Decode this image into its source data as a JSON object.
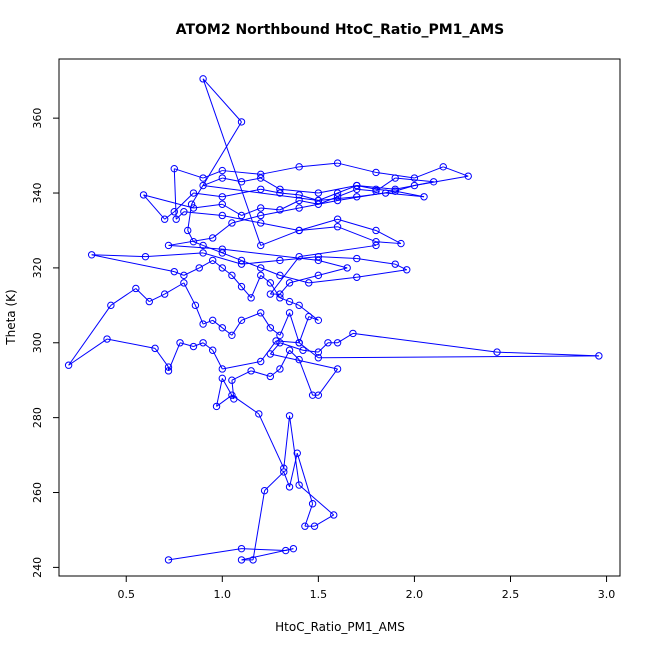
{
  "chart_data": {
    "type": "line",
    "title": "ATOM2 Northbound HtoC_Ratio_PM1_AMS",
    "xlabel": "HtoC_Ratio_PM1_AMS",
    "ylabel": "Theta (K)",
    "xlim": [
      0.15,
      3.07
    ],
    "ylim": [
      237.7,
      375.8
    ],
    "xticks": [
      0.5,
      1.0,
      1.5,
      2.0,
      2.5,
      3.0
    ],
    "xtick_labels": [
      "0.5",
      "1.0",
      "1.5",
      "2.0",
      "2.5",
      "3.0"
    ],
    "yticks": [
      240,
      260,
      280,
      300,
      320,
      340,
      360
    ],
    "ytick_labels": [
      "240",
      "260",
      "280",
      "300",
      "320",
      "340",
      "360"
    ],
    "markers": "open-circle",
    "grid": false,
    "colors": {
      "series": "#0000ff",
      "axes": "#000000",
      "background": "#ffffff"
    },
    "series": [
      {
        "x": [
          0.72,
          1.1,
          1.33,
          1.37,
          1.1,
          1.16,
          1.22,
          1.32,
          1.35,
          1.39,
          1.47,
          1.43,
          1.48,
          1.58,
          1.4,
          1.35,
          1.32,
          1.19,
          1.05,
          0.97,
          1.0,
          1.06,
          1.05,
          1.15,
          1.25,
          1.3,
          1.35,
          1.4,
          1.47,
          1.5,
          1.6,
          1.25,
          1.3,
          1.42,
          1.5,
          1.55,
          1.6,
          1.68,
          2.43,
          2.96,
          1.5,
          1.4,
          1.28,
          1.2,
          1.0,
          0.95,
          0.9,
          0.85,
          0.78,
          0.72,
          0.72,
          0.65,
          0.4,
          0.2,
          0.42,
          0.55,
          0.62,
          0.7,
          0.8,
          0.86,
          0.9,
          0.95,
          1.0,
          1.05,
          1.1,
          1.2,
          1.25,
          1.3,
          1.35,
          1.4,
          1.45,
          1.5,
          1.4,
          1.35,
          1.3,
          1.25,
          1.2,
          1.15,
          1.1,
          1.05,
          1.0,
          0.95,
          0.88,
          0.8,
          0.75,
          0.32,
          0.6,
          0.9,
          1.1,
          1.3,
          1.5,
          1.7,
          1.9,
          1.96,
          1.7,
          1.45,
          1.3,
          1.2,
          1.1,
          1.0,
          0.9,
          0.85,
          0.82,
          0.84,
          1.1,
          0.9,
          1.2,
          1.4,
          1.6,
          1.8,
          1.93,
          1.8,
          1.6,
          1.4,
          1.2,
          1.0,
          0.8,
          0.76,
          0.75,
          0.9,
          1.0,
          1.2,
          1.4,
          1.6,
          1.8,
          2.0,
          2.15,
          2.28,
          2.0,
          1.9,
          1.8,
          1.7,
          1.6,
          1.5,
          1.4,
          1.3,
          1.2,
          1.0,
          0.85,
          0.75,
          0.7,
          0.59,
          0.85,
          1.0,
          1.1,
          1.2,
          1.3,
          1.4,
          1.5,
          1.6,
          1.7,
          1.8,
          1.9,
          2.1,
          1.9,
          1.7,
          1.5,
          1.3,
          1.2,
          1.1,
          1.0,
          0.9,
          1.5,
          1.7,
          1.85,
          2.05,
          1.9,
          1.6,
          1.4,
          1.2,
          1.05,
          0.95,
          0.72,
          1.0,
          1.5,
          1.65,
          1.5,
          1.35,
          1.3,
          1.25,
          1.4,
          1.8
        ],
        "y": [
          242.0,
          245.0,
          244.5,
          245.0,
          242.0,
          242.0,
          260.5,
          265.5,
          261.5,
          270.5,
          257.0,
          251.0,
          251.0,
          254.0,
          262.0,
          280.5,
          266.5,
          281.0,
          286.0,
          283.0,
          290.5,
          285.0,
          290.0,
          292.5,
          291.0,
          293.0,
          298.0,
          295.5,
          286.0,
          286.0,
          293.0,
          297.0,
          300.0,
          298.0,
          297.5,
          300.0,
          300.0,
          302.5,
          297.5,
          296.5,
          296.0,
          300.0,
          300.5,
          295.0,
          293.0,
          298.0,
          300.0,
          299.0,
          300.0,
          292.5,
          293.5,
          298.5,
          301.0,
          294.0,
          310.0,
          314.5,
          311.0,
          313.0,
          316.0,
          310.0,
          305.0,
          306.0,
          304.0,
          302.0,
          306.0,
          308.0,
          304.0,
          302.0,
          308.0,
          300.0,
          307.0,
          306.0,
          310.0,
          311.0,
          312.0,
          316.0,
          318.0,
          312.0,
          315.0,
          318.0,
          320.0,
          322.0,
          320.0,
          318.0,
          319.0,
          323.5,
          323.0,
          324.0,
          321.0,
          322.0,
          323.0,
          322.5,
          321.0,
          319.5,
          317.5,
          316.0,
          318.0,
          320.0,
          322.0,
          324.0,
          326.0,
          327.0,
          330.0,
          337.0,
          359.0,
          370.5,
          326.0,
          330.0,
          333.0,
          330.0,
          326.5,
          327.0,
          331.0,
          330.0,
          332.0,
          334.0,
          335.0,
          333.0,
          346.5,
          344.0,
          346.0,
          345.0,
          347.0,
          348.0,
          345.5,
          344.0,
          347.0,
          344.5,
          342.0,
          340.5,
          341.0,
          342.0,
          340.0,
          338.0,
          339.5,
          340.0,
          341.0,
          339.0,
          340.0,
          335.0,
          333.0,
          339.5,
          336.0,
          337.0,
          334.0,
          336.0,
          335.5,
          338.0,
          337.0,
          339.0,
          341.0,
          340.5,
          344.0,
          343.0,
          341.0,
          342.0,
          340.0,
          341.0,
          344.0,
          343.0,
          344.0,
          342.0,
          338.0,
          339.0,
          340.0,
          339.0,
          340.5,
          338.0,
          336.0,
          334.0,
          332.0,
          328.0,
          326.0,
          325.0,
          322.0,
          320.0,
          318.0,
          316.0,
          313.0,
          313.0,
          323.0,
          326.0
        ]
      }
    ]
  }
}
